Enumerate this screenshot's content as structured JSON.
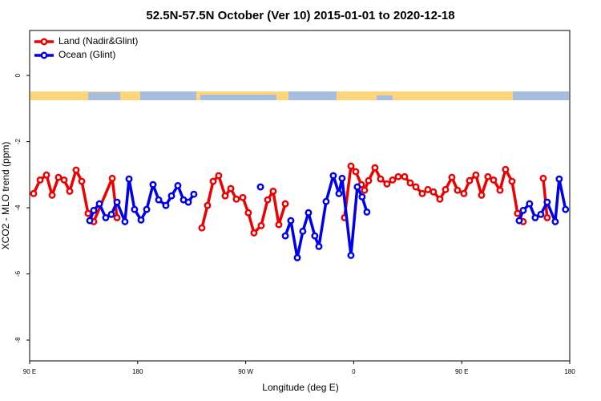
{
  "chart_data": {
    "type": "line",
    "title": "52.5N-57.5N October (Ver 10)   2015-01-01 to 2020-12-18",
    "x_label": "Longitude (deg E)",
    "y_label": "XCO2 - MLO trend (ppm)",
    "xlim": [
      90,
      540
    ],
    "xticks": [
      {
        "value": 90,
        "label": "90 E"
      },
      {
        "value": 180,
        "label": "180"
      },
      {
        "value": 270,
        "label": "90 W"
      },
      {
        "value": 360,
        "label": "0"
      },
      {
        "value": 450,
        "label": "90 E"
      },
      {
        "value": 540,
        "label": "180"
      }
    ],
    "ylim": [
      -8.63,
      1.36
    ],
    "yticks": [
      -8,
      -6,
      -4,
      -2,
      0
    ],
    "legend": "top-left",
    "series": [
      {
        "name": "Land (Nadir&Glint)",
        "color": "#ee0000",
        "x": [
          93.3,
          98.7,
          104.0,
          108.7,
          114.0,
          118.7,
          123.4,
          128.7,
          133.4,
          138.7,
          143.4,
          158.8,
          162.8,
          null,
          233.5,
          238.2,
          242.9,
          247.5,
          252.9,
          257.6,
          262.2,
          267.6,
          272.2,
          276.9,
          282.9,
          288.3,
          292.9,
          297.6,
          303.0,
          null,
          352.3,
          357.7,
          361.7,
          366.4,
          369.0,
          372.4,
          377.7,
          382.4,
          387.7,
          392.4,
          397.1,
          402.4,
          407.1,
          411.8,
          417.1,
          421.8,
          426.4,
          431.8,
          436.5,
          441.8,
          446.5,
          451.8,
          456.5,
          461.8,
          466.5,
          471.8,
          476.5,
          481.9,
          486.5,
          491.9,
          496.5,
          501.2,
          null,
          517.9,
          521.2
        ],
        "values": [
          -3.57,
          -3.16,
          -3.01,
          -3.62,
          -3.08,
          -3.16,
          -3.5,
          -2.86,
          -3.2,
          -4.17,
          -4.42,
          -3.11,
          -4.3,
          null,
          -4.61,
          -3.93,
          -3.2,
          -3.03,
          -3.64,
          -3.42,
          -3.74,
          -3.69,
          -4.15,
          -4.76,
          -4.54,
          -3.76,
          -3.5,
          -4.51,
          -3.88,
          null,
          -4.3,
          -2.74,
          -2.91,
          -3.3,
          -3.47,
          -3.18,
          -2.79,
          -3.13,
          -3.28,
          -3.16,
          -3.06,
          -3.06,
          -3.25,
          -3.37,
          -3.57,
          -3.45,
          -3.52,
          -3.74,
          -3.45,
          -3.08,
          -3.47,
          -3.57,
          -3.18,
          -3.01,
          -3.62,
          -3.06,
          -3.16,
          -3.47,
          -2.84,
          -3.2,
          -4.17,
          -4.42,
          null,
          -3.11,
          -4.3
        ]
      },
      {
        "name": "Ocean (Glint)",
        "color": "#0000ee",
        "x": [
          140.1,
          143.4,
          148.1,
          153.4,
          158.1,
          162.8,
          169.4,
          172.8,
          177.4,
          182.8,
          187.5,
          192.8,
          197.5,
          203.5,
          208.2,
          213.5,
          218.2,
          222.2,
          226.8,
          null,
          282.3,
          null,
          303.0,
          307.6,
          313.0,
          317.6,
          322.3,
          327.6,
          331.0,
          337.0,
          343.0,
          347.7,
          350.3,
          357.7,
          363.0,
          367.0,
          371.0,
          null,
          497.9,
          501.2,
          506.5,
          511.2,
          515.9,
          521.2,
          527.9,
          531.2,
          536.5
        ],
        "values": [
          -4.39,
          -4.08,
          -3.88,
          -4.3,
          -4.2,
          -3.83,
          -4.42,
          -3.13,
          -4.05,
          -4.37,
          -4.05,
          -3.3,
          -3.76,
          -3.93,
          -3.64,
          -3.33,
          -3.76,
          -3.83,
          -3.59,
          null,
          -3.37,
          null,
          -4.85,
          -4.39,
          -5.51,
          -4.71,
          -4.15,
          -4.85,
          -5.17,
          -3.81,
          -3.03,
          -3.57,
          -3.11,
          -5.44,
          -3.37,
          -3.67,
          -4.13,
          null,
          -4.39,
          -4.08,
          -3.88,
          -4.3,
          -4.2,
          -3.83,
          -4.42,
          -3.13,
          -4.05
        ]
      }
    ]
  }
}
